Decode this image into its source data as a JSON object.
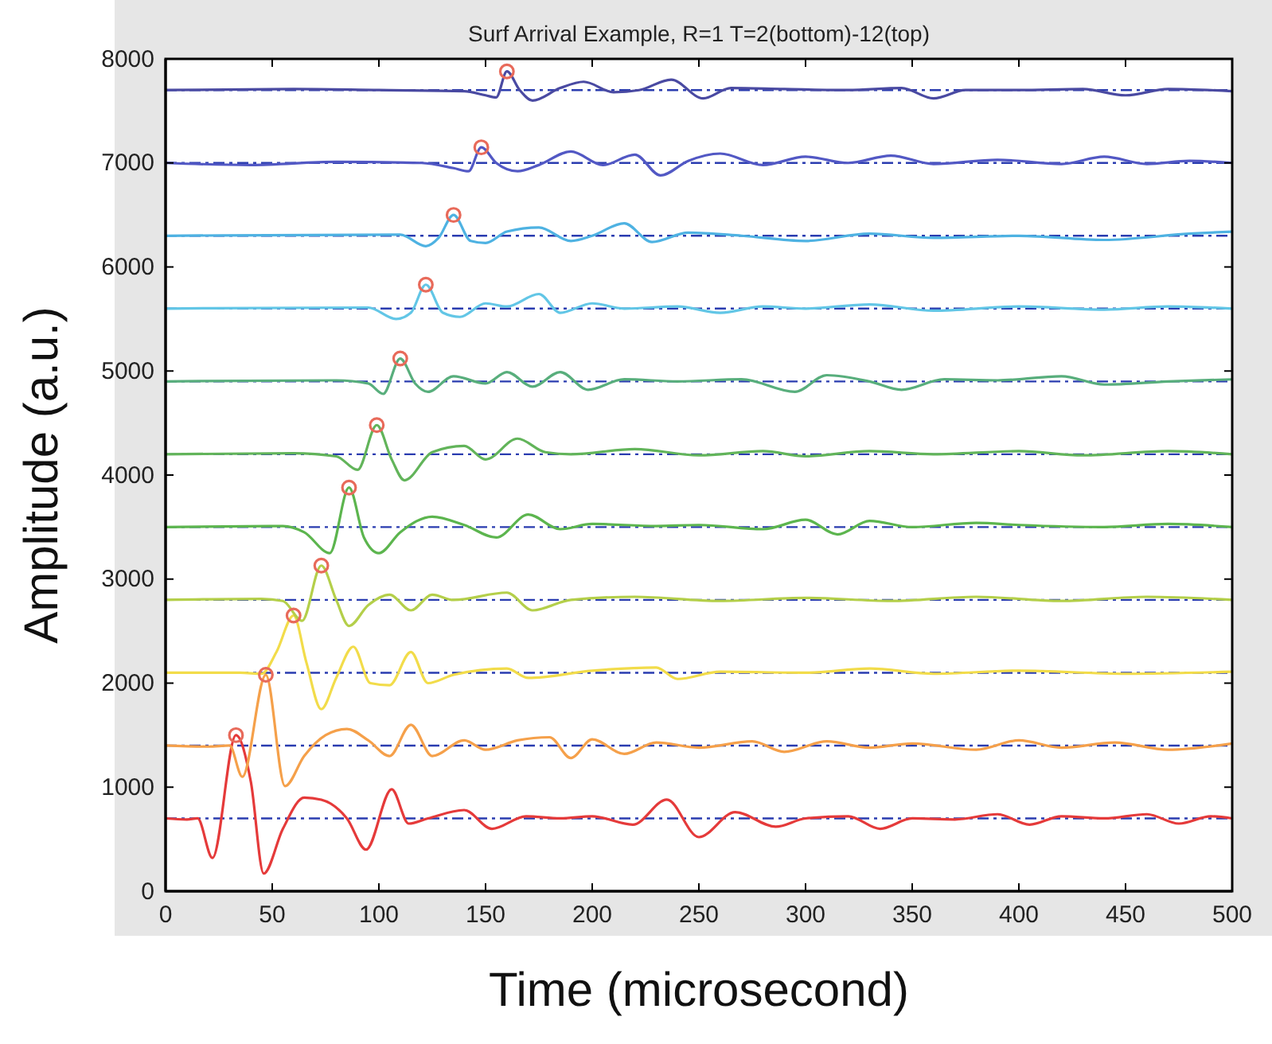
{
  "chart_data": {
    "type": "line",
    "title": "Surf Arrival Example, R=1 T=2(bottom)-12(top)",
    "xlabel": "Time (microsecond)",
    "ylabel": "Amplitude (a.u.)",
    "xlim": [
      0,
      500
    ],
    "xticks": [
      0,
      50,
      100,
      150,
      200,
      250,
      300,
      350,
      400,
      450,
      500
    ],
    "ylim": [
      0,
      8000
    ],
    "yticks": [
      0,
      1000,
      2000,
      3000,
      4000,
      5000,
      6000,
      7000,
      8000
    ],
    "grid": false,
    "marker": "none",
    "line_style": "solid",
    "ref_lines": [
      {
        "axis": "y",
        "value": 700,
        "color": "#2a3cb0",
        "line_style": "dashed"
      },
      {
        "axis": "y",
        "value": 1400,
        "color": "#2a3cb0",
        "line_style": "dashed"
      },
      {
        "axis": "y",
        "value": 2100,
        "color": "#2a3cb0",
        "line_style": "dashed"
      },
      {
        "axis": "y",
        "value": 2800,
        "color": "#2a3cb0",
        "line_style": "dashed"
      },
      {
        "axis": "y",
        "value": 3500,
        "color": "#2a3cb0",
        "line_style": "dashed"
      },
      {
        "axis": "y",
        "value": 4200,
        "color": "#2a3cb0",
        "line_style": "dashed"
      },
      {
        "axis": "y",
        "value": 4900,
        "color": "#2a3cb0",
        "line_style": "dashed"
      },
      {
        "axis": "y",
        "value": 5600,
        "color": "#2a3cb0",
        "line_style": "dashed"
      },
      {
        "axis": "y",
        "value": 6300,
        "color": "#2a3cb0",
        "line_style": "dashed"
      },
      {
        "axis": "y",
        "value": 7000,
        "color": "#2a3cb0",
        "line_style": "dashed"
      },
      {
        "axis": "y",
        "value": 7700,
        "color": "#2a3cb0",
        "line_style": "dashed"
      }
    ],
    "series": [
      {
        "color": "#e53a3a",
        "x": [
          0,
          10,
          15,
          22,
          33,
          40,
          46,
          55,
          65,
          73,
          85,
          94,
          106,
          114,
          123,
          140,
          153,
          169,
          185,
          200,
          219,
          235,
          250,
          267,
          286,
          300,
          320,
          335,
          350,
          370,
          390,
          405,
          420,
          440,
          460,
          475,
          490,
          500
        ],
        "values": [
          700,
          690,
          700,
          320,
          1500,
          1050,
          170,
          600,
          900,
          880,
          700,
          400,
          980,
          650,
          700,
          780,
          600,
          720,
          700,
          720,
          640,
          880,
          520,
          760,
          620,
          700,
          720,
          600,
          700,
          690,
          740,
          640,
          720,
          700,
          740,
          650,
          720,
          700
        ]
      },
      {
        "color": "#f5a04a",
        "x": [
          0,
          20,
          30,
          36,
          47,
          56,
          65,
          75,
          85,
          95,
          105,
          115,
          125,
          140,
          150,
          165,
          180,
          190,
          200,
          215,
          230,
          250,
          275,
          290,
          310,
          330,
          350,
          380,
          400,
          420,
          445,
          470,
          500
        ],
        "values": [
          1400,
          1390,
          1400,
          1100,
          2080,
          1010,
          1300,
          1500,
          1560,
          1450,
          1300,
          1600,
          1300,
          1450,
          1360,
          1450,
          1480,
          1280,
          1460,
          1320,
          1430,
          1380,
          1440,
          1340,
          1440,
          1380,
          1420,
          1360,
          1450,
          1380,
          1430,
          1360,
          1420
        ]
      },
      {
        "color": "#f2dc4a",
        "x": [
          0,
          35,
          45,
          52,
          60,
          66,
          73,
          80,
          88,
          96,
          105,
          115,
          123,
          135,
          160,
          170,
          200,
          230,
          240,
          260,
          300,
          330,
          360,
          400,
          450,
          500
        ],
        "values": [
          2100,
          2100,
          2090,
          2300,
          2650,
          2200,
          1750,
          2050,
          2350,
          2000,
          1980,
          2300,
          2000,
          2080,
          2140,
          2050,
          2120,
          2150,
          2040,
          2110,
          2100,
          2140,
          2090,
          2120,
          2090,
          2110
        ]
      },
      {
        "color": "#b4cf4a",
        "x": [
          0,
          45,
          55,
          64,
          73,
          80,
          86,
          95,
          105,
          115,
          125,
          135,
          160,
          172,
          190,
          220,
          260,
          300,
          340,
          380,
          420,
          460,
          500
        ],
        "values": [
          2800,
          2810,
          2790,
          2600,
          3130,
          2800,
          2550,
          2750,
          2850,
          2700,
          2850,
          2800,
          2870,
          2700,
          2800,
          2830,
          2790,
          2820,
          2790,
          2830,
          2790,
          2830,
          2800
        ]
      },
      {
        "color": "#5cb54e",
        "x": [
          0,
          55,
          65,
          77,
          86,
          93,
          100,
          110,
          125,
          140,
          155,
          170,
          185,
          200,
          230,
          250,
          280,
          300,
          315,
          330,
          350,
          380,
          400,
          440,
          470,
          500
        ],
        "values": [
          3500,
          3510,
          3450,
          3250,
          3880,
          3400,
          3250,
          3450,
          3600,
          3520,
          3400,
          3620,
          3480,
          3530,
          3510,
          3520,
          3480,
          3570,
          3430,
          3560,
          3500,
          3540,
          3520,
          3500,
          3530,
          3500
        ]
      },
      {
        "color": "#62b45a",
        "x": [
          0,
          60,
          80,
          90,
          99,
          106,
          112,
          125,
          140,
          150,
          165,
          178,
          190,
          220,
          250,
          280,
          300,
          330,
          360,
          400,
          430,
          470,
          500
        ],
        "values": [
          4200,
          4210,
          4180,
          4050,
          4480,
          4150,
          3950,
          4220,
          4280,
          4150,
          4350,
          4220,
          4200,
          4250,
          4190,
          4230,
          4180,
          4230,
          4200,
          4230,
          4190,
          4230,
          4200
        ]
      },
      {
        "color": "#58ae7c",
        "x": [
          0,
          80,
          95,
          102,
          110,
          117,
          123,
          135,
          150,
          160,
          172,
          185,
          198,
          215,
          240,
          270,
          295,
          310,
          330,
          345,
          365,
          390,
          420,
          440,
          470,
          500
        ],
        "values": [
          4900,
          4910,
          4880,
          4780,
          5120,
          4880,
          4800,
          4950,
          4880,
          4990,
          4850,
          4990,
          4820,
          4920,
          4900,
          4920,
          4800,
          4960,
          4900,
          4820,
          4920,
          4910,
          4950,
          4870,
          4900,
          4920
        ]
      },
      {
        "color": "#62c6e6",
        "x": [
          0,
          95,
          108,
          115,
          122,
          130,
          138,
          150,
          160,
          175,
          185,
          200,
          215,
          240,
          260,
          280,
          300,
          330,
          360,
          400,
          440,
          470,
          500
        ],
        "values": [
          5600,
          5610,
          5500,
          5560,
          5830,
          5560,
          5520,
          5650,
          5620,
          5740,
          5560,
          5650,
          5600,
          5620,
          5560,
          5620,
          5600,
          5640,
          5580,
          5620,
          5590,
          5620,
          5600
        ]
      },
      {
        "color": "#4eb2e2",
        "x": [
          0,
          110,
          122,
          128,
          135,
          143,
          150,
          160,
          175,
          190,
          200,
          215,
          228,
          245,
          270,
          300,
          330,
          360,
          400,
          440,
          480,
          500
        ],
        "values": [
          6300,
          6310,
          6200,
          6280,
          6500,
          6250,
          6230,
          6340,
          6380,
          6250,
          6300,
          6420,
          6240,
          6330,
          6300,
          6250,
          6320,
          6280,
          6300,
          6260,
          6320,
          6340
        ]
      },
      {
        "color": "#5258c4",
        "x": [
          0,
          40,
          80,
          120,
          135,
          142,
          148,
          155,
          165,
          175,
          190,
          205,
          220,
          232,
          245,
          260,
          280,
          300,
          320,
          340,
          360,
          390,
          420,
          440,
          460,
          480,
          500
        ],
        "values": [
          7000,
          6980,
          7010,
          7000,
          6950,
          6920,
          7150,
          7000,
          6920,
          6980,
          7110,
          6980,
          7080,
          6880,
          7020,
          7090,
          6980,
          7060,
          7000,
          7070,
          6990,
          7030,
          6990,
          7060,
          6990,
          7020,
          7000
        ]
      },
      {
        "color": "#4a4aa2",
        "x": [
          0,
          60,
          100,
          140,
          150,
          155,
          160,
          166,
          172,
          185,
          196,
          210,
          222,
          237,
          252,
          265,
          290,
          320,
          345,
          360,
          375,
          400,
          430,
          450,
          470,
          500
        ],
        "values": [
          7700,
          7710,
          7700,
          7690,
          7650,
          7630,
          7880,
          7700,
          7600,
          7720,
          7780,
          7680,
          7700,
          7800,
          7620,
          7720,
          7710,
          7700,
          7720,
          7620,
          7700,
          7700,
          7710,
          7650,
          7710,
          7690
        ]
      },
      {
        "type": "scatter",
        "marker": "circle",
        "color": "#e86a5a",
        "x": [
          33,
          47,
          60,
          73,
          86,
          99,
          110,
          122,
          135,
          148,
          160
        ],
        "values": [
          1500,
          2080,
          2650,
          3130,
          3880,
          4480,
          5120,
          5830,
          6500,
          7150,
          7880
        ]
      }
    ]
  }
}
